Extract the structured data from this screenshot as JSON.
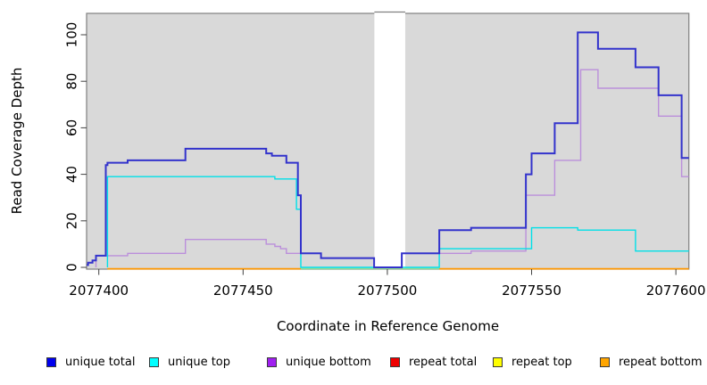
{
  "chart_data": {
    "type": "line",
    "subtype": "step-coverage-plot",
    "title": "",
    "xlabel": "Coordinate in Reference Genome",
    "ylabel": "Read Coverage Depth",
    "x_tick_labels": [
      "2077400",
      "2077450",
      "2077500",
      "2077550",
      "2077600"
    ],
    "x_ticks": [
      2077400,
      2077450,
      2077500,
      2077550,
      2077600
    ],
    "y_tick_labels": [
      "0",
      "20",
      "40",
      "60",
      "80",
      "100"
    ],
    "y_ticks": [
      0,
      20,
      40,
      60,
      80,
      100
    ],
    "xlim": [
      2077395.8,
      2077604.5
    ],
    "ylim": [
      0,
      103
    ],
    "panel_bg": "#D9D9D9",
    "panel_border": "#808080",
    "grid": "off",
    "gap_band": {
      "from": 2077495.5,
      "to": 2077506.2,
      "fill": "#FFFFFF"
    },
    "zero_overlay": {
      "color": "#90DE90",
      "from": 2077470,
      "to": 2077518,
      "value": 0
    },
    "series": [
      {
        "name": "unique total",
        "color": "#3333CC",
        "width": 2,
        "hidden": false,
        "end": 2077604.5,
        "steps": [
          [
            2077395.8,
            1
          ],
          [
            2077396.3,
            2
          ],
          [
            2077397.8,
            3
          ],
          [
            2077399,
            5
          ],
          [
            2077402.4,
            44
          ],
          [
            2077403,
            45
          ],
          [
            2077410,
            46
          ],
          [
            2077430,
            51
          ],
          [
            2077458,
            49
          ],
          [
            2077460,
            48
          ],
          [
            2077465,
            45
          ],
          [
            2077469,
            31
          ],
          [
            2077470,
            6
          ],
          [
            2077477,
            4
          ],
          [
            2077495.4,
            0
          ],
          [
            2077505,
            6
          ],
          [
            2077518,
            16
          ],
          [
            2077529,
            17
          ],
          [
            2077548,
            40
          ],
          [
            2077550,
            49
          ],
          [
            2077558,
            62
          ],
          [
            2077566,
            101
          ],
          [
            2077573,
            94
          ],
          [
            2077586,
            86
          ],
          [
            2077594,
            74
          ],
          [
            2077602,
            47
          ]
        ]
      },
      {
        "name": "unique top",
        "color": "#00E0E8",
        "width": 1.4,
        "hidden": false,
        "end": 2077604.5,
        "steps": [
          [
            2077403,
            0
          ],
          [
            2077403,
            39
          ],
          [
            2077461,
            38
          ],
          [
            2077468.5,
            25
          ],
          [
            2077470,
            0
          ],
          [
            2077518,
            8
          ],
          [
            2077550,
            17
          ],
          [
            2077566,
            16
          ],
          [
            2077586,
            7
          ]
        ]
      },
      {
        "name": "unique bottom",
        "color": "#BB8FDB",
        "width": 1.4,
        "hidden": false,
        "end": 2077604.5,
        "steps": [
          [
            2077399,
            0
          ],
          [
            2077399,
            5
          ],
          [
            2077410,
            6
          ],
          [
            2077430,
            12
          ],
          [
            2077458,
            10
          ],
          [
            2077461,
            9
          ],
          [
            2077463,
            8
          ],
          [
            2077465,
            6
          ],
          [
            2077477,
            4
          ],
          [
            2077495.4,
            0
          ],
          [
            2077505,
            6
          ],
          [
            2077529,
            7
          ],
          [
            2077548,
            31
          ],
          [
            2077558,
            46
          ],
          [
            2077567,
            85
          ],
          [
            2077573,
            77
          ],
          [
            2077594,
            65
          ],
          [
            2077602,
            39
          ]
        ]
      },
      {
        "name": "repeat total",
        "color": "#DD0000",
        "width": 1.4,
        "hidden": true,
        "end": 2077604.5,
        "steps": [
          [
            2077403,
            0
          ]
        ]
      },
      {
        "name": "repeat top",
        "color": "#EEEE00",
        "width": 1.4,
        "hidden": true,
        "end": 2077604.5,
        "steps": [
          [
            2077403,
            0
          ]
        ]
      },
      {
        "name": "repeat bottom",
        "color": "#FF9800",
        "width": 1.7,
        "hidden": false,
        "end": 2077604.5,
        "steps": [
          [
            2077403,
            0
          ]
        ],
        "visible_ranges": [
          [
            2077403,
            2077470
          ],
          [
            2077518,
            2077604.5
          ]
        ]
      }
    ],
    "legend_position": "bottom",
    "legend": [
      {
        "label": "unique total",
        "color": "#0000EE"
      },
      {
        "label": "unique top",
        "color": "#00FFFF"
      },
      {
        "label": "unique bottom",
        "color": "#A020F0"
      },
      {
        "label": "repeat total",
        "color": "#EE0000"
      },
      {
        "label": "repeat top",
        "color": "#FFFF00"
      },
      {
        "label": "repeat bottom",
        "color": "#FFA500"
      }
    ]
  }
}
